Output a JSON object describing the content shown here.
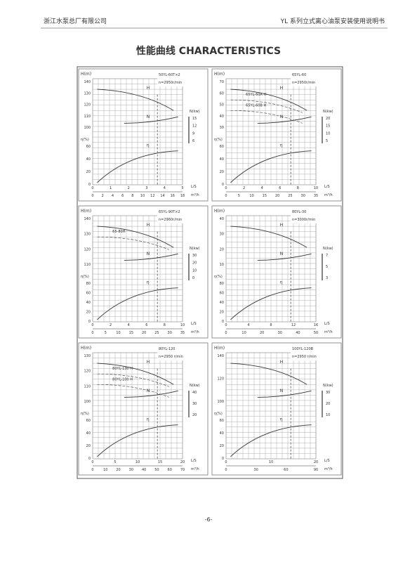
{
  "header": {
    "company": "浙江水泵总厂有限公司",
    "manual": "YL 系列立式离心油泵安装使用说明书"
  },
  "title": "性能曲线 CHARACTERISTICS",
  "axis_labels": {
    "h": "H(m)",
    "eta": "η(%)",
    "n": "N(kw)",
    "ls": "L/S",
    "m3h": "m³/h"
  },
  "curve_labels": {
    "h": "H",
    "n": "N",
    "eta": "η"
  },
  "panels": [
    {
      "model": "50YL-60T×2",
      "speed": "n=2950r/min",
      "variants": [],
      "h_ticks": [
        140,
        130,
        120,
        110,
        100
      ],
      "eta_ticks": [
        60,
        40,
        20,
        0
      ],
      "n_ticks": [
        15,
        12,
        9,
        6
      ],
      "ls_ticks": [
        0,
        1,
        2,
        3,
        4,
        5
      ],
      "m3h_ticks": [
        0,
        2,
        4,
        6,
        8,
        10,
        12,
        14,
        16,
        18
      ]
    },
    {
      "model": "65YL-60",
      "speed": "n=2950r/min",
      "variants": [
        "65YL-60A H",
        "65YL-60B H"
      ],
      "h_ticks": [
        70,
        60,
        50,
        40,
        30
      ],
      "eta_ticks": [
        60,
        40,
        20,
        0
      ],
      "n_ticks": [
        20,
        15,
        10,
        5
      ],
      "ls_ticks": [
        0,
        2,
        4,
        6,
        8,
        10
      ],
      "m3h_ticks": [
        0,
        5,
        10,
        15,
        20,
        25,
        30,
        35
      ]
    },
    {
      "model": "65YL-90T×2",
      "speed": "n=2960r/min",
      "variants": [
        "65-80H"
      ],
      "h_ticks": [
        140,
        130,
        120,
        110
      ],
      "eta_ticks": [
        80,
        60,
        40,
        20,
        0
      ],
      "n_ticks": [
        30,
        20,
        10,
        0
      ],
      "ls_ticks": [
        0,
        2,
        4,
        6,
        8,
        10
      ],
      "m3h_ticks": [
        0,
        5,
        10,
        15,
        20,
        25,
        30,
        35
      ]
    },
    {
      "model": "80YL-30",
      "speed": "n=3000r/min",
      "variants": [],
      "h_ticks": [
        40,
        30,
        20,
        10
      ],
      "eta_ticks": [
        80,
        60,
        40,
        20,
        0
      ],
      "n_ticks": [
        7,
        5,
        3
      ],
      "ls_ticks": [
        0,
        4,
        8,
        12,
        16
      ],
      "m3h_ticks": [
        0,
        10,
        20,
        30,
        40,
        50
      ]
    },
    {
      "model": "80YL-120",
      "speed": "n=2950 r/min",
      "variants": [
        "80YL-130 H",
        "80YL-100 H"
      ],
      "h_ticks": [
        130,
        120,
        110,
        100
      ],
      "eta_ticks": [
        60,
        40,
        20,
        0
      ],
      "n_ticks": [
        40,
        30,
        20
      ],
      "ls_ticks": [
        0,
        5,
        10,
        15,
        20
      ],
      "m3h_ticks": [
        0,
        10,
        20,
        30,
        40,
        50,
        60,
        70
      ]
    },
    {
      "model": "100YL-120B",
      "speed": "n=2950 r/min",
      "variants": [],
      "h_ticks": [
        140,
        120,
        100
      ],
      "eta_ticks": [
        60,
        40,
        20,
        0
      ],
      "n_ticks": [
        30,
        20,
        10
      ],
      "ls_ticks": [
        0,
        10,
        20
      ],
      "m3h_ticks": [
        0,
        30,
        60,
        90
      ]
    }
  ],
  "page_number": "-6-"
}
